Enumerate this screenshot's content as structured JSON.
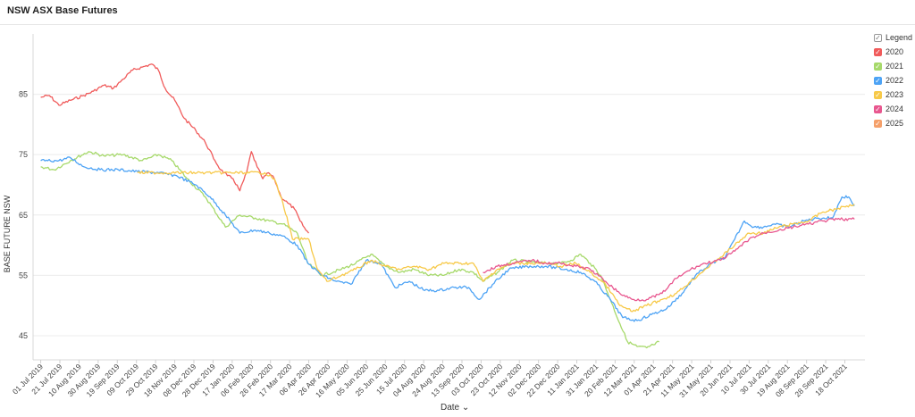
{
  "page": {
    "title": "NSW ASX Base Futures"
  },
  "legend": {
    "header": "Legend",
    "check": "✓"
  },
  "colors": {
    "2020": "#f05b5b",
    "2021": "#a6d96a",
    "2022": "#4da3f5",
    "2023": "#f7c948",
    "2024": "#e8578f",
    "2025": "#f5a06a"
  },
  "chart_data": {
    "type": "line",
    "title": "NSW ASX Base Futures",
    "xlabel": "Date",
    "ylabel": "BASE FUTURE NSW",
    "ylim": [
      41,
      95
    ],
    "yticks": [
      45,
      55,
      65,
      75,
      85
    ],
    "xlim": [
      "2019-06-23",
      "2021-11-08"
    ],
    "grid": {
      "horizontal": true,
      "vertical": false
    },
    "legend_position": "right",
    "xtick_labels": [
      "01 Jul 2019",
      "21 Jul 2019",
      "10 Aug 2019",
      "30 Aug 2019",
      "19 Sep 2019",
      "09 Oct 2019",
      "29 Oct 2019",
      "18 Nov 2019",
      "08 Dec 2019",
      "28 Dec 2019",
      "17 Jan 2020",
      "06 Feb 2020",
      "26 Feb 2020",
      "17 Mar 2020",
      "06 Apr 2020",
      "26 Apr 2020",
      "16 May 2020",
      "05 Jun 2020",
      "25 Jun 2020",
      "15 Jul 2020",
      "04 Aug 2020",
      "24 Aug 2020",
      "13 Sep 2020",
      "03 Oct 2020",
      "23 Oct 2020",
      "12 Nov 2020",
      "02 Dec 2020",
      "22 Dec 2020",
      "11 Jan 2021",
      "31 Jan 2021",
      "20 Feb 2021",
      "12 Mar 2021",
      "01 Apr 2021",
      "21 Apr 2021",
      "11 May 2021",
      "31 May 2021",
      "20 Jun 2021",
      "10 Jul 2021",
      "30 Jul 2021",
      "19 Aug 2021",
      "08 Sep 2021",
      "28 Sep 2021",
      "18 Oct 2021"
    ],
    "series": [
      {
        "name": "2020",
        "points": [
          [
            "2019-07-01",
            84.5
          ],
          [
            "2019-07-10",
            84.8
          ],
          [
            "2019-07-20",
            83.2
          ],
          [
            "2019-08-01",
            84
          ],
          [
            "2019-08-15",
            84.8
          ],
          [
            "2019-08-25",
            85.5
          ],
          [
            "2019-09-05",
            86.5
          ],
          [
            "2019-09-15",
            86
          ],
          [
            "2019-09-25",
            87.5
          ],
          [
            "2019-10-05",
            89
          ],
          [
            "2019-10-15",
            89.5
          ],
          [
            "2019-10-25",
            90
          ],
          [
            "2019-11-01",
            89
          ],
          [
            "2019-11-08",
            86
          ],
          [
            "2019-11-18",
            84
          ],
          [
            "2019-11-28",
            81
          ],
          [
            "2019-12-10",
            79
          ],
          [
            "2019-12-20",
            77
          ],
          [
            "2019-12-30",
            74
          ],
          [
            "2020-01-05",
            72.5
          ],
          [
            "2020-01-12",
            71.5
          ],
          [
            "2020-01-18",
            71
          ],
          [
            "2020-01-25",
            69
          ],
          [
            "2020-02-01",
            72
          ],
          [
            "2020-02-06",
            75.5
          ],
          [
            "2020-02-12",
            73
          ],
          [
            "2020-02-18",
            71
          ],
          [
            "2020-02-24",
            72
          ],
          [
            "2020-03-01",
            71
          ],
          [
            "2020-03-08",
            68
          ],
          [
            "2020-03-15",
            67
          ],
          [
            "2020-03-22",
            66
          ],
          [
            "2020-03-28",
            64
          ],
          [
            "2020-04-03",
            62.5
          ],
          [
            "2020-04-06",
            62
          ]
        ]
      },
      {
        "name": "2021",
        "points": [
          [
            "2019-07-01",
            73
          ],
          [
            "2019-07-15",
            72.5
          ],
          [
            "2019-08-01",
            74
          ],
          [
            "2019-08-20",
            75.5
          ],
          [
            "2019-09-05",
            74.8
          ],
          [
            "2019-09-25",
            75
          ],
          [
            "2019-10-15",
            74
          ],
          [
            "2019-11-01",
            75
          ],
          [
            "2019-11-15",
            74
          ],
          [
            "2019-12-01",
            71
          ],
          [
            "2019-12-20",
            68
          ],
          [
            "2020-01-10",
            63
          ],
          [
            "2020-01-25",
            65
          ],
          [
            "2020-02-10",
            64.5
          ],
          [
            "2020-02-25",
            64
          ],
          [
            "2020-03-10",
            63.5
          ],
          [
            "2020-03-25",
            62
          ],
          [
            "2020-04-05",
            57
          ],
          [
            "2020-04-20",
            55
          ],
          [
            "2020-05-10",
            56
          ],
          [
            "2020-05-25",
            57
          ],
          [
            "2020-06-10",
            58.5
          ],
          [
            "2020-06-25",
            56.5
          ],
          [
            "2020-07-10",
            55.5
          ],
          [
            "2020-07-25",
            56
          ],
          [
            "2020-08-10",
            55
          ],
          [
            "2020-08-25",
            55
          ],
          [
            "2020-09-10",
            56
          ],
          [
            "2020-09-25",
            55.5
          ],
          [
            "2020-10-05",
            54
          ],
          [
            "2020-10-20",
            55.5
          ],
          [
            "2020-11-05",
            57.5
          ],
          [
            "2020-11-25",
            57.2
          ],
          [
            "2020-12-10",
            57
          ],
          [
            "2020-12-25",
            57
          ],
          [
            "2021-01-05",
            57.5
          ],
          [
            "2021-01-15",
            58.5
          ],
          [
            "2021-01-25",
            57
          ],
          [
            "2021-02-05",
            55
          ],
          [
            "2021-02-15",
            51
          ],
          [
            "2021-02-25",
            47
          ],
          [
            "2021-03-05",
            44
          ],
          [
            "2021-03-15",
            43.2
          ],
          [
            "2021-03-25",
            43
          ],
          [
            "2021-04-01",
            43.5
          ],
          [
            "2021-04-07",
            44
          ]
        ]
      },
      {
        "name": "2022",
        "points": [
          [
            "2019-07-01",
            74
          ],
          [
            "2019-07-20",
            74
          ],
          [
            "2019-08-01",
            74.5
          ],
          [
            "2019-08-15",
            73
          ],
          [
            "2019-09-01",
            72.5
          ],
          [
            "2019-09-20",
            72.5
          ],
          [
            "2019-10-10",
            72.2
          ],
          [
            "2019-11-01",
            72
          ],
          [
            "2019-11-20",
            71.5
          ],
          [
            "2019-12-10",
            70
          ],
          [
            "2019-12-25",
            68
          ],
          [
            "2020-01-10",
            65
          ],
          [
            "2020-01-25",
            62
          ],
          [
            "2020-02-10",
            62.5
          ],
          [
            "2020-02-25",
            62
          ],
          [
            "2020-03-10",
            61.5
          ],
          [
            "2020-03-25",
            60
          ],
          [
            "2020-04-05",
            57
          ],
          [
            "2020-04-20",
            55
          ],
          [
            "2020-05-05",
            54
          ],
          [
            "2020-05-20",
            53.5
          ],
          [
            "2020-06-05",
            57.5
          ],
          [
            "2020-06-20",
            57
          ],
          [
            "2020-07-05",
            53
          ],
          [
            "2020-07-20",
            54
          ],
          [
            "2020-08-05",
            52.5
          ],
          [
            "2020-08-20",
            52.5
          ],
          [
            "2020-09-05",
            53
          ],
          [
            "2020-09-20",
            53
          ],
          [
            "2020-10-01",
            51
          ],
          [
            "2020-10-15",
            53.5
          ],
          [
            "2020-11-01",
            56
          ],
          [
            "2020-11-20",
            56.5
          ],
          [
            "2020-12-10",
            56.5
          ],
          [
            "2020-12-30",
            56
          ],
          [
            "2021-01-15",
            55.5
          ],
          [
            "2021-01-30",
            54
          ],
          [
            "2021-02-15",
            51
          ],
          [
            "2021-02-28",
            48
          ],
          [
            "2021-03-15",
            47.5
          ],
          [
            "2021-03-30",
            48.5
          ],
          [
            "2021-04-15",
            49.5
          ],
          [
            "2021-05-01",
            52
          ],
          [
            "2021-05-15",
            55
          ],
          [
            "2021-06-01",
            57
          ],
          [
            "2021-06-15",
            58
          ],
          [
            "2021-06-25",
            61
          ],
          [
            "2021-07-05",
            64
          ],
          [
            "2021-07-15",
            63
          ],
          [
            "2021-07-25",
            63
          ],
          [
            "2021-08-05",
            63.5
          ],
          [
            "2021-08-20",
            63
          ],
          [
            "2021-09-05",
            64
          ],
          [
            "2021-09-20",
            64.5
          ],
          [
            "2021-10-05",
            64.5
          ],
          [
            "2021-10-15",
            68
          ],
          [
            "2021-10-22",
            68
          ],
          [
            "2021-10-28",
            66.5
          ]
        ]
      },
      {
        "name": "2023",
        "points": [
          [
            "2019-10-10",
            72
          ],
          [
            "2019-11-15",
            72
          ],
          [
            "2019-12-20",
            72
          ],
          [
            "2020-01-30",
            72
          ],
          [
            "2020-02-20",
            72
          ],
          [
            "2020-03-01",
            71
          ],
          [
            "2020-03-10",
            67
          ],
          [
            "2020-03-20",
            61
          ],
          [
            "2020-04-06",
            61
          ],
          [
            "2020-04-15",
            56
          ],
          [
            "2020-04-25",
            54
          ],
          [
            "2020-05-10",
            55
          ],
          [
            "2020-05-25",
            56
          ],
          [
            "2020-06-10",
            57.5
          ],
          [
            "2020-06-25",
            56.5
          ],
          [
            "2020-07-10",
            56
          ],
          [
            "2020-07-25",
            56.5
          ],
          [
            "2020-08-10",
            56
          ],
          [
            "2020-08-25",
            57
          ],
          [
            "2020-09-10",
            57
          ],
          [
            "2020-09-25",
            57
          ],
          [
            "2020-10-05",
            54
          ],
          [
            "2020-10-20",
            56
          ],
          [
            "2020-11-05",
            57
          ],
          [
            "2020-11-25",
            57
          ],
          [
            "2020-12-10",
            57
          ],
          [
            "2020-12-25",
            56.5
          ],
          [
            "2021-01-10",
            57
          ],
          [
            "2021-01-25",
            55.5
          ],
          [
            "2021-02-10",
            53.5
          ],
          [
            "2021-02-25",
            50
          ],
          [
            "2021-03-10",
            49
          ],
          [
            "2021-03-25",
            50
          ],
          [
            "2021-04-10",
            51
          ],
          [
            "2021-04-25",
            52
          ],
          [
            "2021-05-10",
            54
          ],
          [
            "2021-05-25",
            56
          ],
          [
            "2021-06-10",
            58
          ],
          [
            "2021-06-25",
            60
          ],
          [
            "2021-07-10",
            62
          ],
          [
            "2021-07-25",
            62
          ],
          [
            "2021-08-10",
            63
          ],
          [
            "2021-08-25",
            63.5
          ],
          [
            "2021-09-10",
            64
          ],
          [
            "2021-09-25",
            65.5
          ],
          [
            "2021-10-10",
            66
          ],
          [
            "2021-10-20",
            66.5
          ],
          [
            "2021-10-28",
            66.8
          ]
        ]
      },
      {
        "name": "2024",
        "points": [
          [
            "2020-10-05",
            55.5
          ],
          [
            "2020-10-20",
            56.5
          ],
          [
            "2020-11-05",
            57
          ],
          [
            "2020-11-25",
            57.5
          ],
          [
            "2020-12-10",
            57
          ],
          [
            "2020-12-25",
            57
          ],
          [
            "2021-01-10",
            56.5
          ],
          [
            "2021-01-25",
            56
          ],
          [
            "2021-02-10",
            54
          ],
          [
            "2021-02-25",
            52
          ],
          [
            "2021-03-10",
            51
          ],
          [
            "2021-03-25",
            51
          ],
          [
            "2021-04-10",
            52
          ],
          [
            "2021-04-25",
            54.5
          ],
          [
            "2021-05-10",
            56
          ],
          [
            "2021-05-25",
            57
          ],
          [
            "2021-06-10",
            57.5
          ],
          [
            "2021-06-25",
            59
          ],
          [
            "2021-07-10",
            61
          ],
          [
            "2021-07-25",
            62
          ],
          [
            "2021-08-10",
            62.5
          ],
          [
            "2021-08-25",
            63
          ],
          [
            "2021-09-10",
            63.5
          ],
          [
            "2021-09-25",
            64
          ],
          [
            "2021-10-10",
            64.3
          ],
          [
            "2021-10-28",
            64.3
          ]
        ]
      },
      {
        "name": "2025",
        "points": []
      }
    ]
  }
}
